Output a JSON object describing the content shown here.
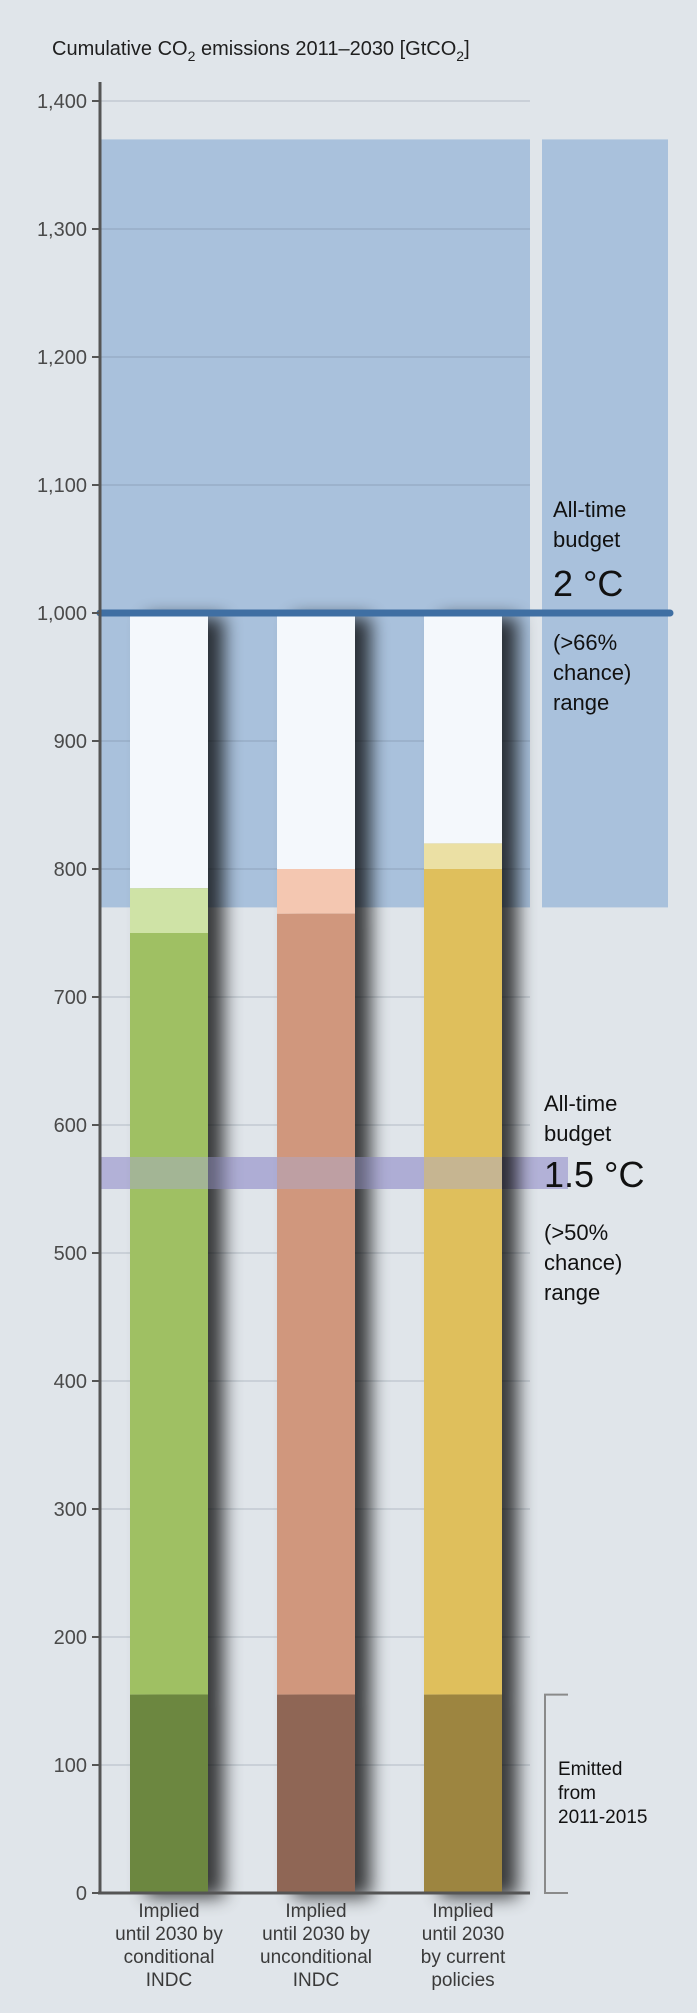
{
  "chart_data": {
    "type": "bar",
    "title": "Cumulative CO",
    "title_sub1": "2",
    "title_mid": " emissions 2011–2030 [GtCO",
    "title_sub2": "2",
    "title_end": "]",
    "ylim": [
      0,
      1400
    ],
    "yticks": [
      0,
      100,
      200,
      300,
      400,
      500,
      600,
      700,
      800,
      900,
      1000,
      1100,
      1200,
      1300,
      1400
    ],
    "ytick_labels": [
      "0",
      "100",
      "200",
      "300",
      "400",
      "500",
      "600",
      "700",
      "800",
      "900",
      "1,000",
      "1,100",
      "1,200",
      "1,300",
      "1,400"
    ],
    "grid": true,
    "categories": [
      [
        "Implied",
        "until 2030 by",
        "conditional",
        "INDC"
      ],
      [
        "Implied",
        "until 2030 by",
        "unconditional",
        "INDC"
      ],
      [
        "Implied",
        "until 2030",
        "by current",
        "policies"
      ]
    ],
    "bars": [
      {
        "emitted": 155,
        "implied_low": 750,
        "implied_high": 785,
        "color_emitted": "#6c8741",
        "color_main": "#9fc063",
        "color_range": "#cfe3a6"
      },
      {
        "emitted": 155,
        "implied_low": 765,
        "implied_high": 800,
        "color_emitted": "#8f6654",
        "color_main": "#d0977d",
        "color_range": "#f4c7b1"
      },
      {
        "emitted": 155,
        "implied_low": 800,
        "implied_high": 820,
        "color_emitted": "#9d853f",
        "color_main": "#dfbf5b",
        "color_range": "#ebe0a4"
      }
    ],
    "bar_top_background": 1000,
    "budget_2c": {
      "low": 770,
      "high": 1370,
      "central": 1000,
      "label_lines": [
        "All-time",
        "budget"
      ],
      "value_label": "2 °C",
      "chance_lines": [
        "(>66%",
        "chance)",
        "range"
      ],
      "color": "#a9c1dc",
      "line_color": "#3f6fa3"
    },
    "budget_15c": {
      "low": 550,
      "high": 575,
      "label_lines": [
        "All-time",
        "budget"
      ],
      "value_label": "1.5 °C",
      "chance_lines": [
        "(>50%",
        "chance)",
        "range"
      ],
      "color": "#a9a8d3"
    },
    "emitted_bracket": {
      "low": 0,
      "high": 155,
      "label_lines": [
        "Emitted",
        "from",
        "2011-2015"
      ]
    }
  }
}
